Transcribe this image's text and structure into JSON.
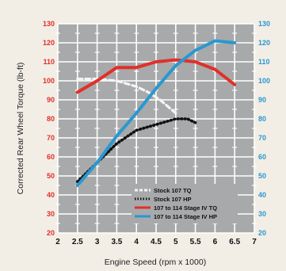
{
  "chart_data": {
    "type": "line",
    "title": "",
    "xlabel": "Engine Speed (rpm x 1000)",
    "ylabel": "Corrected Rear Wheel Torque (lb-ft)",
    "xlim": [
      2,
      7
    ],
    "ylim": [
      20,
      130
    ],
    "x_ticks": [
      "2",
      "2.5",
      "3",
      "3.5",
      "4",
      "4.5",
      "5",
      "5.5",
      "6",
      "6.5",
      "7"
    ],
    "x_tick_values": [
      2,
      2.5,
      3,
      3.5,
      4,
      4.5,
      5,
      5.5,
      6,
      6.5,
      7
    ],
    "y_ticks": [
      "20",
      "30",
      "40",
      "50",
      "60",
      "70",
      "80",
      "90",
      "100",
      "110",
      "120",
      "130"
    ],
    "y_tick_values": [
      20,
      30,
      40,
      50,
      60,
      70,
      80,
      90,
      100,
      110,
      120,
      130
    ],
    "grid": true,
    "legend_position": "bottom-right",
    "series": [
      {
        "name": "Stock 107 TQ",
        "color": "#f4f4f4",
        "dash": "dashed",
        "x": [
          2.5,
          3.0,
          3.5,
          4.0,
          4.3,
          4.6,
          5.0
        ],
        "y": [
          101,
          101,
          100,
          97,
          94,
          90,
          83
        ]
      },
      {
        "name": "Stock 107 HP",
        "color": "#111111",
        "dash": "dotted",
        "x": [
          2.5,
          3.0,
          3.5,
          4.0,
          4.5,
          5.0,
          5.3,
          5.5
        ],
        "y": [
          47,
          57,
          67,
          74,
          77,
          80,
          80,
          78
        ]
      },
      {
        "name": "107 to 114 Stage IV TQ",
        "color": "#e0302a",
        "dash": "solid",
        "x": [
          2.5,
          3.0,
          3.5,
          4.0,
          4.5,
          5.0,
          5.5,
          6.0,
          6.5
        ],
        "y": [
          94,
          100,
          107,
          107,
          110,
          111,
          110,
          106,
          98
        ]
      },
      {
        "name": "107 to 114 Stage IV HP",
        "color": "#2a98cf",
        "dash": "solid",
        "x": [
          2.5,
          3.0,
          3.5,
          4.0,
          4.5,
          5.0,
          5.5,
          6.0,
          6.5
        ],
        "y": [
          45,
          57,
          71,
          83,
          96,
          108,
          116,
          121,
          120
        ]
      }
    ]
  }
}
